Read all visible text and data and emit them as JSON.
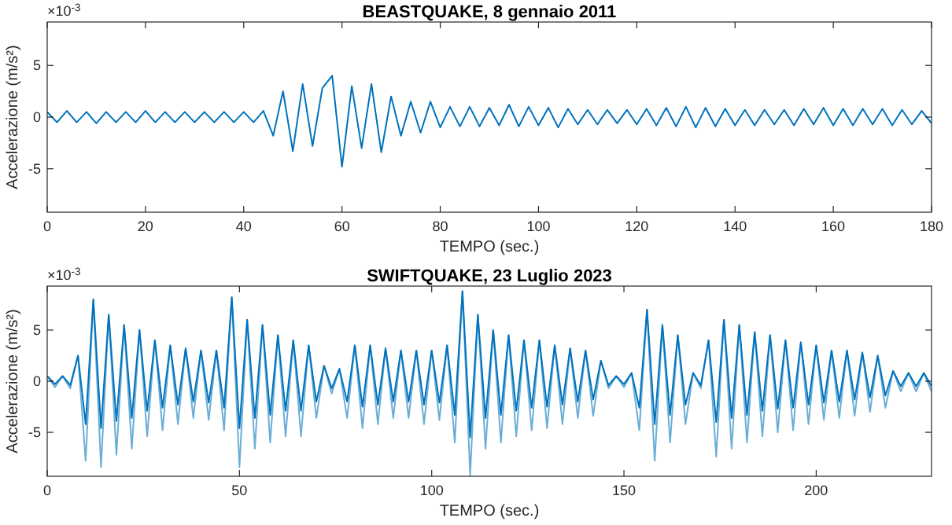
{
  "chart_data": [
    {
      "type": "line",
      "title": "BEASTQUAKE, 8 gennaio 2011",
      "xlabel": "TEMPO (sec.)",
      "ylabel": "Accelerazione (m/s²)",
      "annotations": [
        "×10$^{-3}$"
      ],
      "xlim": [
        0,
        180
      ],
      "xticks": [
        0,
        20,
        40,
        60,
        80,
        100,
        120,
        140,
        160,
        180
      ],
      "ylim": [
        -9.2,
        9.2
      ],
      "yticks": [
        -5,
        0,
        5
      ],
      "x": [
        0,
        2,
        4,
        6,
        8,
        10,
        12,
        14,
        16,
        18,
        20,
        22,
        24,
        26,
        28,
        30,
        32,
        34,
        36,
        38,
        40,
        42,
        44,
        46,
        48,
        50,
        52,
        54,
        56,
        58,
        60,
        62,
        64,
        66,
        68,
        70,
        72,
        74,
        76,
        78,
        80,
        82,
        84,
        86,
        88,
        90,
        92,
        94,
        96,
        98,
        100,
        102,
        104,
        106,
        108,
        110,
        112,
        114,
        116,
        118,
        120,
        122,
        124,
        126,
        128,
        130,
        132,
        134,
        136,
        138,
        140,
        142,
        144,
        146,
        148,
        150,
        152,
        154,
        156,
        158,
        160,
        162,
        164,
        166,
        168,
        170,
        172,
        174,
        176,
        178,
        180
      ],
      "series": [
        {
          "color": "#0072bd",
          "values": [
            0.5,
            -0.5,
            0.6,
            -0.5,
            0.5,
            -0.6,
            0.5,
            -0.5,
            0.5,
            -0.5,
            0.6,
            -0.5,
            0.5,
            -0.5,
            0.5,
            -0.5,
            0.5,
            -0.5,
            0.5,
            -0.5,
            0.5,
            -0.5,
            0.6,
            -1.8,
            2.5,
            -3.3,
            3.2,
            -2.8,
            2.8,
            4.0,
            -4.8,
            3.0,
            -3.0,
            3.2,
            -3.4,
            2.0,
            -1.8,
            1.5,
            -1.5,
            1.5,
            -1.0,
            1.0,
            -0.9,
            1.0,
            -0.9,
            0.9,
            -0.8,
            1.2,
            -0.9,
            1.0,
            -0.8,
            0.9,
            -1.0,
            0.8,
            -0.7,
            0.7,
            -0.7,
            0.7,
            -0.6,
            0.7,
            -0.7,
            0.8,
            -0.8,
            0.9,
            -0.9,
            1.0,
            -1.0,
            0.9,
            -0.9,
            0.8,
            -0.8,
            0.7,
            -0.8,
            0.7,
            -0.7,
            0.7,
            -0.8,
            0.8,
            -0.7,
            0.9,
            -0.8,
            0.8,
            -0.8,
            0.8,
            -0.7,
            0.8,
            -0.8,
            0.7,
            -0.7,
            0.6,
            -0.6
          ]
        }
      ]
    },
    {
      "type": "line",
      "title": "SWIFTQUAKE, 23 Luglio 2023",
      "xlabel": "TEMPO (sec.)",
      "ylabel": "Accelerazione (m/s²)",
      "annotations": [
        "×10$^{-3}$"
      ],
      "xlim": [
        0,
        230
      ],
      "xticks": [
        0,
        50,
        100,
        150,
        200
      ],
      "ylim": [
        -9.3,
        9.3
      ],
      "yticks": [
        -5,
        0,
        5
      ],
      "x": [
        0,
        2,
        4,
        6,
        8,
        10,
        12,
        14,
        16,
        18,
        20,
        22,
        24,
        26,
        28,
        30,
        32,
        34,
        36,
        38,
        40,
        42,
        44,
        46,
        48,
        50,
        52,
        54,
        56,
        58,
        60,
        62,
        64,
        66,
        68,
        70,
        72,
        74,
        76,
        78,
        80,
        82,
        84,
        86,
        88,
        90,
        92,
        94,
        96,
        98,
        100,
        102,
        104,
        106,
        108,
        110,
        112,
        114,
        116,
        118,
        120,
        122,
        124,
        126,
        128,
        130,
        132,
        134,
        136,
        138,
        140,
        142,
        144,
        146,
        148,
        150,
        152,
        154,
        156,
        158,
        160,
        162,
        164,
        166,
        168,
        170,
        172,
        174,
        176,
        178,
        180,
        182,
        184,
        186,
        188,
        190,
        192,
        194,
        196,
        198,
        200,
        202,
        204,
        206,
        208,
        210,
        212,
        214,
        216,
        218,
        220,
        222,
        224,
        226,
        228,
        230
      ],
      "series": [
        {
          "color": "#6aaed6",
          "values": [
            0.5,
            -0.6,
            0.5,
            -0.7,
            2.5,
            -7.8,
            8.0,
            -8.4,
            6.5,
            -7.2,
            5.5,
            -6.6,
            5.0,
            -5.4,
            4.0,
            -4.8,
            3.5,
            -4.2,
            3.2,
            -3.6,
            3.0,
            -3.8,
            3.0,
            -4.8,
            8.2,
            -8.4,
            6.0,
            -6.6,
            5.5,
            -6.0,
            4.5,
            -5.4,
            4.0,
            -5.4,
            3.5,
            -3.6,
            1.5,
            -1.2,
            1.2,
            -3.6,
            3.5,
            -4.6,
            3.5,
            -4.2,
            3.2,
            -3.6,
            3.0,
            -3.6,
            3.0,
            -4.2,
            3.0,
            -3.8,
            3.5,
            -6.0,
            8.8,
            -9.2,
            6.5,
            -6.6,
            5.0,
            -6.0,
            4.5,
            -5.4,
            4.0,
            -4.8,
            4.0,
            -4.6,
            3.5,
            -4.2,
            3.2,
            -3.6,
            3.0,
            -3.4,
            2.0,
            -0.7,
            0.5,
            -0.6,
            0.8,
            -4.8,
            7.0,
            -7.8,
            5.5,
            -6.0,
            4.5,
            -4.2,
            0.8,
            -0.7,
            4.0,
            -7.4,
            6.0,
            -6.6,
            5.5,
            -6.0,
            4.8,
            -5.4,
            4.5,
            -5.0,
            4.0,
            -4.8,
            3.8,
            -4.2,
            3.5,
            -3.8,
            3.0,
            -3.6,
            3.0,
            -3.4,
            2.8,
            -3.0,
            2.5,
            -2.6,
            1.0,
            -1.0,
            0.8,
            -1.0,
            0.8,
            -1.0
          ]
        },
        {
          "color": "#0072bd",
          "values": [
            0.5,
            -0.3,
            0.5,
            -0.4,
            2.5,
            -4.2,
            8.0,
            -4.6,
            6.5,
            -3.9,
            5.5,
            -3.6,
            5.0,
            -2.9,
            4.0,
            -2.6,
            3.5,
            -2.3,
            3.2,
            -2.0,
            3.0,
            -2.1,
            3.0,
            -2.6,
            8.2,
            -4.6,
            6.0,
            -3.6,
            5.5,
            -3.3,
            4.5,
            -2.9,
            4.0,
            -2.9,
            3.5,
            -2.0,
            1.5,
            -0.7,
            1.2,
            -2.0,
            3.5,
            -2.5,
            3.5,
            -2.3,
            3.2,
            -2.0,
            3.0,
            -2.0,
            3.0,
            -2.3,
            3.0,
            -2.1,
            3.5,
            -3.3,
            8.8,
            -5.5,
            6.5,
            -3.6,
            5.0,
            -3.3,
            4.5,
            -2.9,
            4.0,
            -2.6,
            4.0,
            -2.5,
            3.5,
            -2.3,
            3.2,
            -2.0,
            3.0,
            -1.8,
            2.0,
            -0.4,
            0.5,
            -0.3,
            0.8,
            -2.6,
            7.0,
            -4.2,
            5.5,
            -3.3,
            4.5,
            -2.3,
            0.8,
            -0.4,
            4.0,
            -4.0,
            6.0,
            -3.6,
            5.5,
            -3.3,
            4.8,
            -2.9,
            4.5,
            -2.7,
            4.0,
            -2.6,
            3.8,
            -2.3,
            3.5,
            -2.1,
            3.0,
            -2.0,
            3.0,
            -1.8,
            2.8,
            -1.6,
            2.5,
            -1.4,
            1.0,
            -0.5,
            0.8,
            -0.5,
            0.8,
            -0.5
          ]
        }
      ]
    }
  ]
}
